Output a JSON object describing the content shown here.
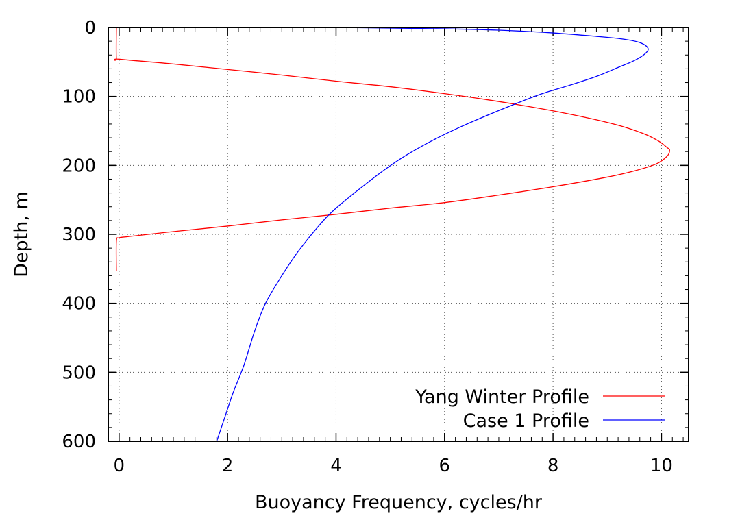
{
  "chart_data": {
    "type": "line",
    "title": "",
    "xlabel": "Buoyancy Frequency, cycles/hr",
    "ylabel": "Depth, m",
    "xlim": [
      -0.2,
      10.5
    ],
    "ylim": [
      0,
      600
    ],
    "y_inverted": true,
    "xticks": [
      0,
      2,
      4,
      6,
      8,
      10
    ],
    "yticks": [
      0,
      100,
      200,
      300,
      400,
      500,
      600
    ],
    "grid": true,
    "legend_position": "bottom-right",
    "series": [
      {
        "name": "Yang Winter Profile",
        "color": "#ff0000",
        "x": [
          -0.05,
          -0.05,
          0.0,
          1.0,
          2.0,
          3.0,
          4.0,
          5.0,
          6.0,
          6.8,
          7.5,
          8.2,
          8.8,
          9.3,
          9.7,
          9.95,
          10.1,
          10.15,
          10.1,
          9.9,
          9.5,
          9.0,
          8.0,
          7.0,
          6.0,
          5.0,
          4.0,
          3.0,
          2.0,
          1.0,
          0.2,
          0.0,
          -0.05,
          -0.05
        ],
        "y": [
          0,
          44,
          46,
          53,
          61,
          69,
          78,
          86,
          96,
          105,
          114,
          124,
          134,
          144,
          155,
          165,
          174,
          178,
          187,
          198,
          208,
          217,
          231,
          243,
          254,
          262,
          271,
          279,
          288,
          296,
          303,
          305,
          310,
          353
        ]
      },
      {
        "name": "Case 1 Profile",
        "color": "#0000ff",
        "x": [
          4.0,
          5.0,
          6.0,
          7.0,
          8.0,
          8.8,
          9.3,
          9.6,
          9.75,
          9.7,
          9.5,
          9.2,
          8.8,
          8.3,
          7.8,
          7.3,
          6.8,
          6.3,
          5.8,
          5.3,
          4.9,
          4.5,
          4.0,
          3.7,
          3.3,
          3.0,
          2.7,
          2.5,
          2.3,
          2.1,
          1.95,
          1.8
        ],
        "y": [
          0,
          1,
          2,
          4,
          8,
          13,
          17,
          22,
          30,
          38,
          48,
          58,
          71,
          84,
          96,
          111,
          127,
          144,
          163,
          185,
          206,
          230,
          262,
          286,
          325,
          360,
          400,
          440,
          490,
          530,
          565,
          600
        ]
      }
    ]
  }
}
